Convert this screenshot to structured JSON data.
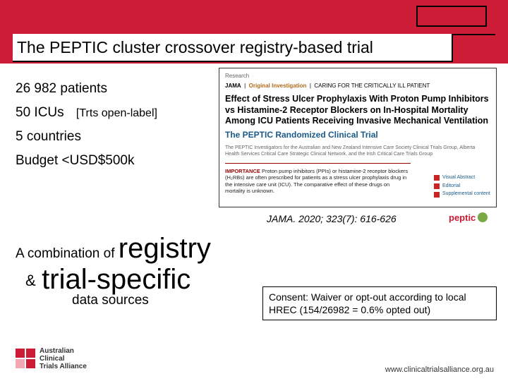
{
  "colors": {
    "brand_red": "#cc1c36",
    "accent_green": "#7aa843",
    "paper_blue": "#1a5a8a",
    "paper_orange": "#b06a1a",
    "paper_darkred": "#900000"
  },
  "title": "The PEPTIC  cluster crossover registry-based trial",
  "facts": {
    "patients": "26 982 patients",
    "icus": "50 ICUs",
    "icus_note": "[Trts open-label]",
    "countries": "5 countries",
    "budget": "Budget <USD$500k"
  },
  "paper": {
    "kicker": "Research",
    "journal": "JAMA",
    "tag": "Original Investigation",
    "section": "CARING FOR THE CRITICALLY ILL PATIENT",
    "title": "Effect of Stress Ulcer Prophylaxis With Proton Pump Inhibitors vs Histamine-2 Receptor Blockers on In-Hospital Mortality Among ICU Patients Receiving Invasive Mechanical Ventilation",
    "subtitle": "The PEPTIC Randomized Clinical Trial",
    "authors": "The PEPTIC Investigators for the Australian and New Zealand Intensive Care Society Clinical Trials Group, Alberta Health Services Critical Care Strategic Clinical Network, and the Irish Critical Care Trials Group",
    "importance_label": "IMPORTANCE",
    "importance_text": "Proton pump inhibitors (PPIs) or histamine-2 receptor blockers (H₂RBs) are often prescribed for patients as a stress ulcer prophylaxis drug in the intensive care unit (ICU). The comparative effect of these drugs on mortality is unknown.",
    "side_links": {
      "a": "Visual Abstract",
      "b": "Editorial",
      "c": "Supplemental content"
    }
  },
  "citation": "JAMA. 2020; 323(7): 616-626",
  "peptic_logo_text": "peptic",
  "combo": {
    "prefix": "A combination of",
    "word1": "registry",
    "amp": "&",
    "word2": "trial-specific",
    "suffix": "data sources"
  },
  "consent": "Consent: Waiver or opt-out according to local HREC   (154/26982 = 0.6% opted out)",
  "footer_url": "www.clinicaltrialsalliance.org.au",
  "acta": {
    "l1": "Australian",
    "l2": "Clinical",
    "l3": "Trials Alliance"
  }
}
